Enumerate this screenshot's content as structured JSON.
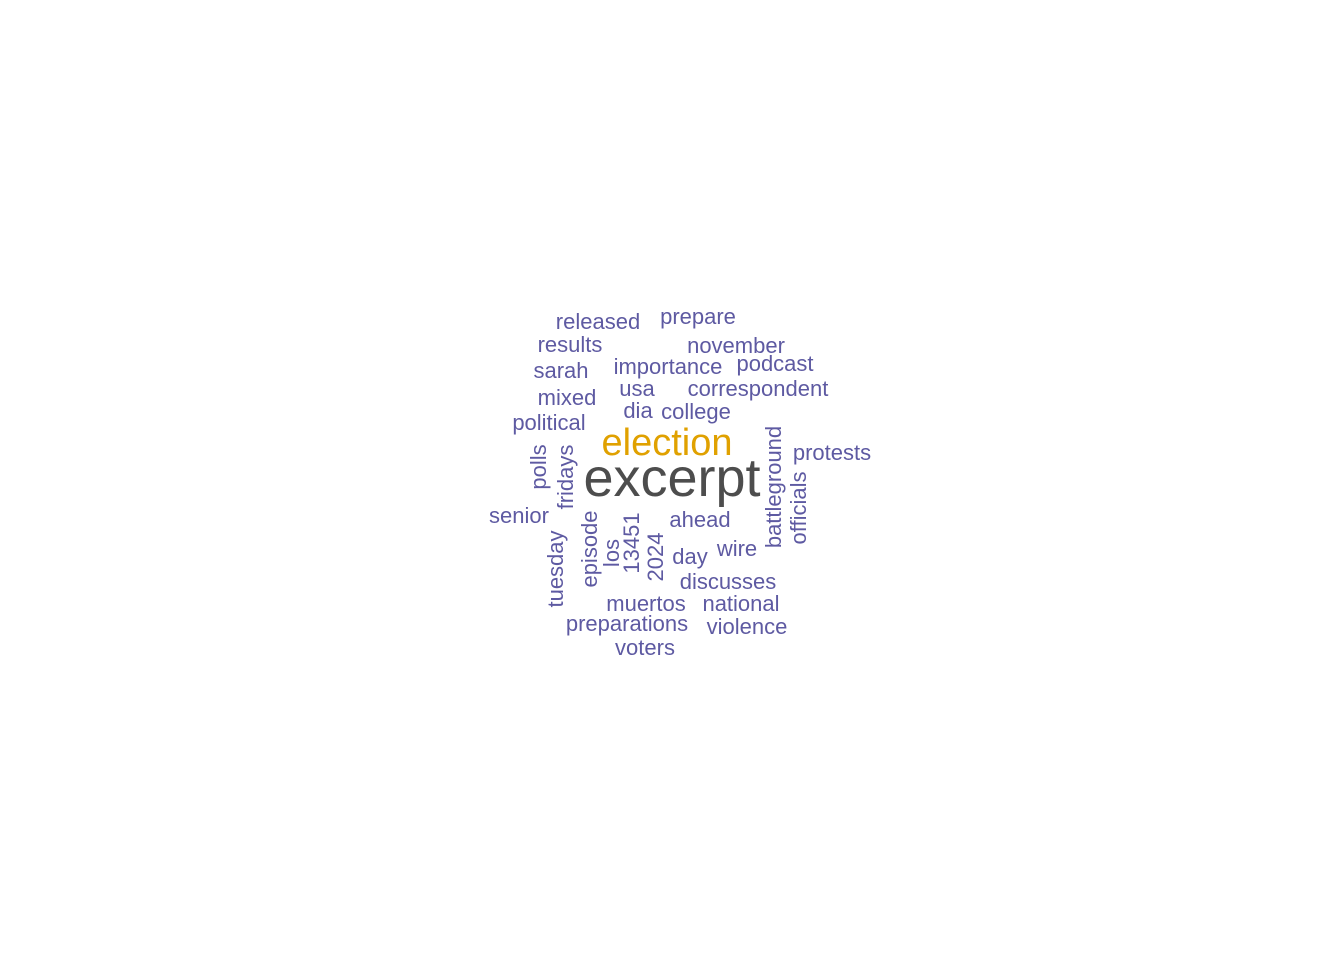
{
  "colors": {
    "primary": "#4d4d4d",
    "secondary": "#e0a100",
    "common": "#5e5aa2"
  },
  "words": {
    "excerpt": "excerpt",
    "election": "election",
    "released": "released",
    "prepare": "prepare",
    "results": "results",
    "november": "november",
    "podcast": "podcast",
    "importance": "importance",
    "sarah": "sarah",
    "usa": "usa",
    "correspondent": "correspondent",
    "mixed": "mixed",
    "dia": "dia",
    "college": "college",
    "political": "political",
    "battleground": "battleground",
    "protests": "protests",
    "polls": "polls",
    "fridays": "fridays",
    "officials": "officials",
    "senior": "senior",
    "ahead": "ahead",
    "episode": "episode",
    "n13451": "13451",
    "tuesday": "tuesday",
    "los": "los",
    "n2024": "2024",
    "day": "day",
    "wire": "wire",
    "discusses": "discusses",
    "muertos": "muertos",
    "national": "national",
    "preparations": "preparations",
    "violence": "violence",
    "voters": "voters"
  }
}
